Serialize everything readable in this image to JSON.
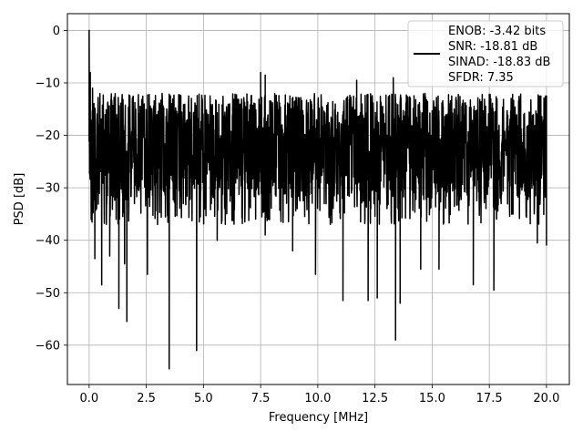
{
  "chart_data": {
    "type": "line",
    "xlabel": "Frequency [MHz]",
    "ylabel": "PSD [dB]",
    "xlim": [
      -0.95,
      21.0
    ],
    "ylim": [
      -67.5,
      3.2
    ],
    "xticks": [
      0.0,
      2.5,
      5.0,
      7.5,
      10.0,
      12.5,
      15.0,
      17.5,
      20.0
    ],
    "xtick_labels": [
      "0.0",
      "2.5",
      "5.0",
      "7.5",
      "10.0",
      "12.5",
      "15.0",
      "17.5",
      "20.0"
    ],
    "yticks": [
      0,
      -10,
      -20,
      -30,
      -40,
      -50,
      -60
    ],
    "ytick_labels": [
      "0",
      "−10",
      "−20",
      "−30",
      "−40",
      "−50",
      "−60"
    ],
    "grid": true,
    "legend_position": "top-right",
    "series": [
      {
        "name": "ENOB: -3.42 bits\nSNR: -18.81 dB\nSINAD: -18.83 dB\nSFDR: 7.35",
        "color": "#000000",
        "x_range": [
          0.0,
          20.0
        ],
        "noise_model": {
          "median_floor_db": -22,
          "typical_band_db": [
            -32,
            -12
          ],
          "upper_envelope_db": -8
        },
        "peaks": [
          {
            "x": 0.0,
            "y": 0.0
          },
          {
            "x": 0.05,
            "y": -8.0
          },
          {
            "x": 0.15,
            "y": -11.0
          },
          {
            "x": 7.5,
            "y": -8.0
          },
          {
            "x": 7.7,
            "y": -8.5
          },
          {
            "x": 11.7,
            "y": -9.5
          },
          {
            "x": 13.3,
            "y": -9.0
          }
        ],
        "dips": [
          {
            "x": 0.25,
            "y": -43.5
          },
          {
            "x": 0.55,
            "y": -48.5
          },
          {
            "x": 0.9,
            "y": -43.0
          },
          {
            "x": 1.3,
            "y": -53.0
          },
          {
            "x": 1.55,
            "y": -44.5
          },
          {
            "x": 1.65,
            "y": -55.5
          },
          {
            "x": 2.55,
            "y": -46.5
          },
          {
            "x": 3.5,
            "y": -64.5
          },
          {
            "x": 4.7,
            "y": -61.0
          },
          {
            "x": 5.6,
            "y": -40.0
          },
          {
            "x": 7.7,
            "y": -39.0
          },
          {
            "x": 8.9,
            "y": -42.0
          },
          {
            "x": 9.9,
            "y": -46.5
          },
          {
            "x": 11.1,
            "y": -51.5
          },
          {
            "x": 12.2,
            "y": -51.5
          },
          {
            "x": 12.6,
            "y": -51.0
          },
          {
            "x": 13.4,
            "y": -59.0
          },
          {
            "x": 13.6,
            "y": -52.0
          },
          {
            "x": 14.5,
            "y": -45.5
          },
          {
            "x": 15.3,
            "y": -45.5
          },
          {
            "x": 16.8,
            "y": -48.5
          },
          {
            "x": 17.7,
            "y": -49.5
          },
          {
            "x": 19.6,
            "y": -40.5
          },
          {
            "x": 20.0,
            "y": -41.0
          }
        ]
      }
    ]
  }
}
